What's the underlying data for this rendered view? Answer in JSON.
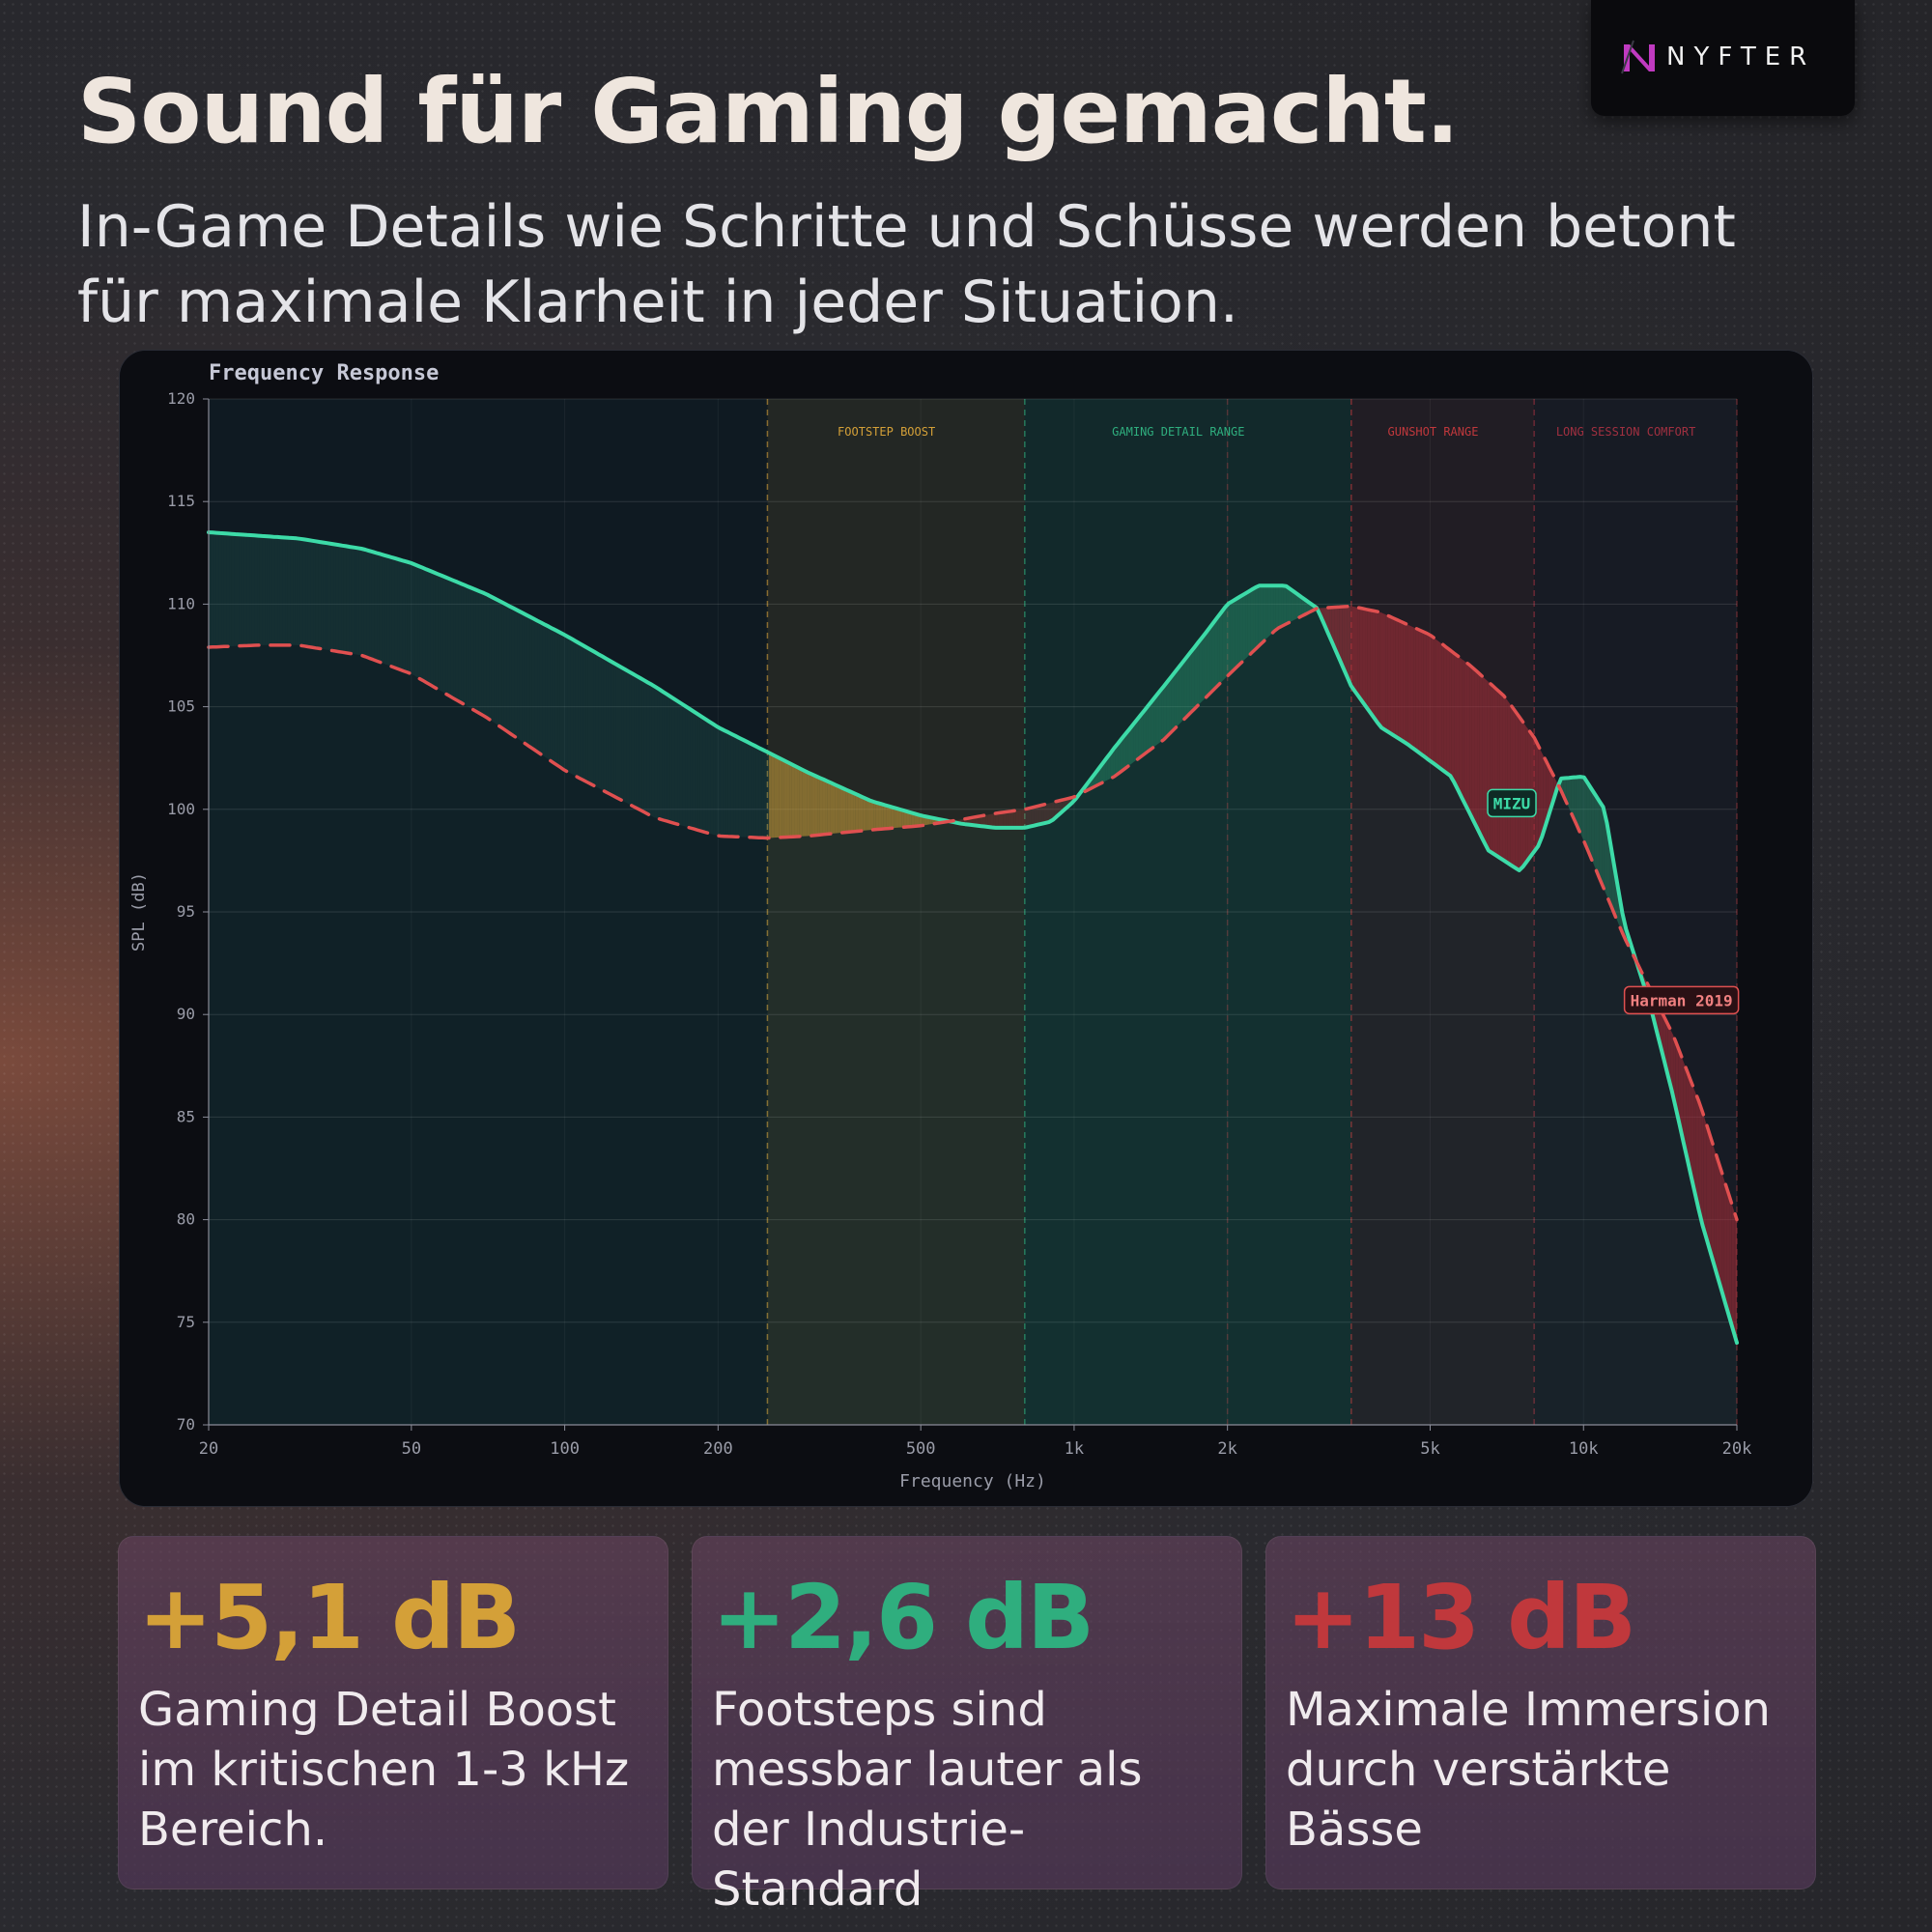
{
  "headline": "Sound für Gaming gemacht.",
  "subline": "In-Game Details wie Schritte und Schüsse werden betont für maximale Klarheit in jeder Situation.",
  "brand": {
    "name": "NYFTER",
    "accent": "#c03ac0"
  },
  "stats": [
    {
      "value": "+5,1 dB",
      "desc": "Gaming Detail Boost im kritischen 1-3 kHz Bereich.",
      "color": "#d4a038"
    },
    {
      "value": "+2,6 dB",
      "desc": "Footsteps sind messbar lauter als der Industrie-Standard",
      "color": "#2fae7e"
    },
    {
      "value": "+13 dB",
      "desc": "Maximale Immersion durch verstärkte Bässe",
      "color": "#c0383c"
    }
  ],
  "chart_data": {
    "type": "line",
    "title": "Frequency Response",
    "xlabel": "Frequency (Hz)",
    "ylabel": "SPL (dB)",
    "xscale": "log",
    "xlim": [
      20,
      20000
    ],
    "ylim": [
      70,
      120
    ],
    "xticks": [
      20,
      50,
      100,
      200,
      500,
      1000,
      2000,
      5000,
      10000,
      20000
    ],
    "xtick_labels": [
      "20",
      "50",
      "100",
      "200",
      "500",
      "1k",
      "2k",
      "5k",
      "10k",
      "20k"
    ],
    "yticks": [
      70,
      75,
      80,
      85,
      90,
      95,
      100,
      105,
      110,
      115,
      120
    ],
    "grid": true,
    "regions": [
      {
        "label": "FOOTSTEP BOOST",
        "from": 250,
        "to": 800,
        "color": "#d4a038"
      },
      {
        "label": "GAMING DETAIL RANGE",
        "from": 800,
        "to": 3500,
        "color": "#2fae7e"
      },
      {
        "label": "GUNSHOT RANGE",
        "from": 3500,
        "to": 8000,
        "color": "#c0383c"
      },
      {
        "label": "LONG SESSION COMFORT",
        "from": 8000,
        "to": 20000,
        "color": "#a03040"
      }
    ],
    "series": [
      {
        "name": "MIZU",
        "color": "#3ddba8",
        "style": "solid",
        "x": [
          20,
          30,
          40,
          50,
          70,
          100,
          150,
          200,
          300,
          400,
          500,
          600,
          700,
          800,
          900,
          1000,
          1200,
          1500,
          1800,
          2000,
          2300,
          2600,
          3000,
          3500,
          4000,
          4500,
          5500,
          6500,
          7500,
          8200,
          9000,
          10000,
          11000,
          12000,
          13500,
          15000,
          17000,
          20000
        ],
        "y": [
          113.5,
          113.2,
          112.7,
          112.0,
          110.5,
          108.5,
          106.0,
          104.0,
          101.8,
          100.4,
          99.7,
          99.3,
          99.1,
          99.1,
          99.4,
          100.4,
          103.0,
          106.0,
          108.5,
          110.0,
          110.9,
          110.9,
          109.8,
          106.0,
          104.0,
          103.2,
          101.6,
          98.0,
          97.0,
          98.3,
          101.5,
          101.6,
          100.0,
          94.5,
          90.5,
          86.0,
          80.0,
          74.0
        ]
      },
      {
        "name": "Harman 2019",
        "color": "#e05050",
        "style": "dashed",
        "x": [
          20,
          25,
          30,
          40,
          50,
          70,
          100,
          150,
          200,
          250,
          300,
          400,
          500,
          600,
          700,
          800,
          1000,
          1200,
          1500,
          2000,
          2500,
          3000,
          3500,
          4000,
          5000,
          6000,
          7000,
          8000,
          9000,
          10000,
          12000,
          15000,
          17000,
          20000
        ],
        "y": [
          107.9,
          108.0,
          108.0,
          107.5,
          106.6,
          104.5,
          101.9,
          99.6,
          98.7,
          98.6,
          98.7,
          99.0,
          99.2,
          99.5,
          99.8,
          100.0,
          100.6,
          101.6,
          103.4,
          106.5,
          108.8,
          109.8,
          109.9,
          109.6,
          108.5,
          107.0,
          105.5,
          103.5,
          101.0,
          98.5,
          93.8,
          89.0,
          85.5,
          80.0
        ]
      }
    ]
  }
}
